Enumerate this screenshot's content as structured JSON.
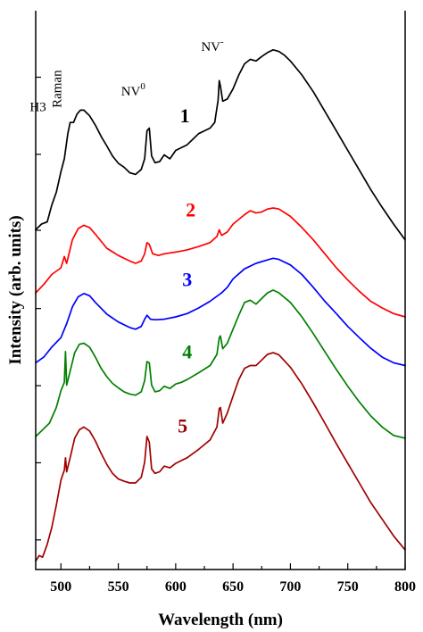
{
  "chart_data": {
    "type": "line",
    "xlabel": "Wavelength (nm)",
    "ylabel": "Intensity (arb. units)",
    "xlim": [
      478,
      800
    ],
    "ylim": [
      0,
      1
    ],
    "x_ticks": [
      500,
      550,
      600,
      650,
      700,
      750,
      800
    ],
    "y_tick_labels_shown": false,
    "y_tick_values": [
      0.053,
      0.191,
      0.329,
      0.467,
      0.607,
      0.743,
      0.881
    ],
    "grid": false,
    "legend": "none",
    "series": [
      {
        "label": "1",
        "color": "#000000",
        "label_pos": {
          "x": 608,
          "y": 0.8
        },
        "points": [
          [
            478,
            0.608
          ],
          [
            483,
            0.618
          ],
          [
            488,
            0.622
          ],
          [
            492,
            0.652
          ],
          [
            496,
            0.675
          ],
          [
            500,
            0.712
          ],
          [
            503,
            0.735
          ],
          [
            506,
            0.78
          ],
          [
            508,
            0.8
          ],
          [
            511,
            0.8
          ],
          [
            514,
            0.815
          ],
          [
            517,
            0.822
          ],
          [
            520,
            0.822
          ],
          [
            525,
            0.812
          ],
          [
            530,
            0.795
          ],
          [
            535,
            0.775
          ],
          [
            540,
            0.758
          ],
          [
            545,
            0.74
          ],
          [
            550,
            0.727
          ],
          [
            555,
            0.72
          ],
          [
            560,
            0.71
          ],
          [
            565,
            0.707
          ],
          [
            570,
            0.716
          ],
          [
            573,
            0.735
          ],
          [
            575,
            0.785
          ],
          [
            577,
            0.79
          ],
          [
            579,
            0.74
          ],
          [
            582,
            0.728
          ],
          [
            586,
            0.73
          ],
          [
            590,
            0.742
          ],
          [
            595,
            0.735
          ],
          [
            600,
            0.75
          ],
          [
            605,
            0.755
          ],
          [
            610,
            0.76
          ],
          [
            615,
            0.77
          ],
          [
            620,
            0.78
          ],
          [
            625,
            0.785
          ],
          [
            630,
            0.79
          ],
          [
            634,
            0.8
          ],
          [
            637,
            0.84
          ],
          [
            638,
            0.875
          ],
          [
            639,
            0.865
          ],
          [
            641,
            0.838
          ],
          [
            645,
            0.842
          ],
          [
            650,
            0.86
          ],
          [
            655,
            0.885
          ],
          [
            660,
            0.905
          ],
          [
            665,
            0.913
          ],
          [
            670,
            0.91
          ],
          [
            675,
            0.918
          ],
          [
            680,
            0.925
          ],
          [
            685,
            0.93
          ],
          [
            690,
            0.927
          ],
          [
            695,
            0.92
          ],
          [
            700,
            0.91
          ],
          [
            710,
            0.885
          ],
          [
            720,
            0.855
          ],
          [
            730,
            0.82
          ],
          [
            740,
            0.785
          ],
          [
            750,
            0.75
          ],
          [
            760,
            0.715
          ],
          [
            770,
            0.68
          ],
          [
            780,
            0.648
          ],
          [
            790,
            0.618
          ],
          [
            800,
            0.59
          ]
        ]
      },
      {
        "label": "2",
        "color": "#ff0000",
        "label_pos": {
          "x": 613,
          "y": 0.632
        },
        "points": [
          [
            478,
            0.495
          ],
          [
            485,
            0.51
          ],
          [
            492,
            0.528
          ],
          [
            500,
            0.54
          ],
          [
            503,
            0.56
          ],
          [
            505,
            0.548
          ],
          [
            510,
            0.59
          ],
          [
            515,
            0.61
          ],
          [
            520,
            0.616
          ],
          [
            525,
            0.612
          ],
          [
            530,
            0.6
          ],
          [
            540,
            0.575
          ],
          [
            550,
            0.562
          ],
          [
            560,
            0.552
          ],
          [
            565,
            0.548
          ],
          [
            570,
            0.552
          ],
          [
            573,
            0.565
          ],
          [
            575,
            0.585
          ],
          [
            577,
            0.582
          ],
          [
            580,
            0.565
          ],
          [
            585,
            0.562
          ],
          [
            590,
            0.565
          ],
          [
            600,
            0.568
          ],
          [
            610,
            0.572
          ],
          [
            620,
            0.578
          ],
          [
            630,
            0.585
          ],
          [
            636,
            0.596
          ],
          [
            638,
            0.608
          ],
          [
            640,
            0.598
          ],
          [
            645,
            0.604
          ],
          [
            650,
            0.618
          ],
          [
            660,
            0.635
          ],
          [
            665,
            0.642
          ],
          [
            670,
            0.638
          ],
          [
            675,
            0.64
          ],
          [
            680,
            0.645
          ],
          [
            685,
            0.647
          ],
          [
            690,
            0.645
          ],
          [
            700,
            0.632
          ],
          [
            710,
            0.612
          ],
          [
            720,
            0.59
          ],
          [
            730,
            0.565
          ],
          [
            740,
            0.54
          ],
          [
            750,
            0.518
          ],
          [
            760,
            0.498
          ],
          [
            770,
            0.48
          ],
          [
            780,
            0.468
          ],
          [
            790,
            0.458
          ],
          [
            800,
            0.452
          ]
        ]
      },
      {
        "label": "3",
        "color": "#0000ff",
        "label_pos": {
          "x": 610,
          "y": 0.507
        },
        "points": [
          [
            478,
            0.37
          ],
          [
            485,
            0.38
          ],
          [
            492,
            0.398
          ],
          [
            500,
            0.415
          ],
          [
            505,
            0.44
          ],
          [
            510,
            0.47
          ],
          [
            515,
            0.488
          ],
          [
            520,
            0.494
          ],
          [
            525,
            0.49
          ],
          [
            530,
            0.478
          ],
          [
            540,
            0.457
          ],
          [
            550,
            0.443
          ],
          [
            560,
            0.433
          ],
          [
            565,
            0.43
          ],
          [
            570,
            0.435
          ],
          [
            573,
            0.448
          ],
          [
            575,
            0.455
          ],
          [
            578,
            0.448
          ],
          [
            582,
            0.447
          ],
          [
            590,
            0.448
          ],
          [
            600,
            0.452
          ],
          [
            610,
            0.458
          ],
          [
            620,
            0.468
          ],
          [
            630,
            0.48
          ],
          [
            640,
            0.495
          ],
          [
            645,
            0.505
          ],
          [
            650,
            0.52
          ],
          [
            660,
            0.538
          ],
          [
            670,
            0.548
          ],
          [
            680,
            0.554
          ],
          [
            685,
            0.557
          ],
          [
            690,
            0.555
          ],
          [
            700,
            0.545
          ],
          [
            710,
            0.528
          ],
          [
            720,
            0.505
          ],
          [
            730,
            0.48
          ],
          [
            740,
            0.458
          ],
          [
            750,
            0.435
          ],
          [
            760,
            0.415
          ],
          [
            770,
            0.396
          ],
          [
            780,
            0.38
          ],
          [
            790,
            0.37
          ],
          [
            800,
            0.365
          ]
        ]
      },
      {
        "label": "4",
        "color": "#008000",
        "label_pos": {
          "x": 610,
          "y": 0.378
        },
        "points": [
          [
            478,
            0.238
          ],
          [
            483,
            0.248
          ],
          [
            490,
            0.262
          ],
          [
            496,
            0.29
          ],
          [
            500,
            0.32
          ],
          [
            503,
            0.335
          ],
          [
            504,
            0.39
          ],
          [
            505,
            0.33
          ],
          [
            508,
            0.355
          ],
          [
            512,
            0.388
          ],
          [
            516,
            0.403
          ],
          [
            520,
            0.405
          ],
          [
            525,
            0.398
          ],
          [
            530,
            0.38
          ],
          [
            535,
            0.36
          ],
          [
            540,
            0.345
          ],
          [
            545,
            0.333
          ],
          [
            550,
            0.325
          ],
          [
            555,
            0.318
          ],
          [
            560,
            0.314
          ],
          [
            565,
            0.312
          ],
          [
            570,
            0.318
          ],
          [
            573,
            0.338
          ],
          [
            575,
            0.372
          ],
          [
            577,
            0.37
          ],
          [
            579,
            0.33
          ],
          [
            582,
            0.318
          ],
          [
            586,
            0.32
          ],
          [
            590,
            0.328
          ],
          [
            595,
            0.324
          ],
          [
            600,
            0.332
          ],
          [
            605,
            0.335
          ],
          [
            610,
            0.34
          ],
          [
            620,
            0.352
          ],
          [
            630,
            0.365
          ],
          [
            636,
            0.385
          ],
          [
            638,
            0.415
          ],
          [
            639,
            0.418
          ],
          [
            641,
            0.395
          ],
          [
            645,
            0.405
          ],
          [
            650,
            0.43
          ],
          [
            655,
            0.455
          ],
          [
            660,
            0.478
          ],
          [
            665,
            0.482
          ],
          [
            670,
            0.475
          ],
          [
            675,
            0.485
          ],
          [
            680,
            0.495
          ],
          [
            685,
            0.5
          ],
          [
            690,
            0.495
          ],
          [
            700,
            0.478
          ],
          [
            710,
            0.452
          ],
          [
            720,
            0.422
          ],
          [
            730,
            0.39
          ],
          [
            740,
            0.358
          ],
          [
            750,
            0.328
          ],
          [
            760,
            0.3
          ],
          [
            770,
            0.275
          ],
          [
            780,
            0.255
          ],
          [
            790,
            0.24
          ],
          [
            800,
            0.235
          ]
        ]
      },
      {
        "label": "5",
        "color": "#a00000",
        "label_pos": {
          "x": 606,
          "y": 0.245
        },
        "points": [
          [
            478,
            0.015
          ],
          [
            481,
            0.025
          ],
          [
            484,
            0.022
          ],
          [
            488,
            0.045
          ],
          [
            492,
            0.075
          ],
          [
            496,
            0.115
          ],
          [
            500,
            0.16
          ],
          [
            503,
            0.178
          ],
          [
            504,
            0.2
          ],
          [
            505,
            0.175
          ],
          [
            508,
            0.2
          ],
          [
            512,
            0.235
          ],
          [
            516,
            0.25
          ],
          [
            520,
            0.255
          ],
          [
            525,
            0.248
          ],
          [
            530,
            0.23
          ],
          [
            535,
            0.208
          ],
          [
            540,
            0.188
          ],
          [
            545,
            0.172
          ],
          [
            550,
            0.162
          ],
          [
            555,
            0.158
          ],
          [
            560,
            0.155
          ],
          [
            565,
            0.155
          ],
          [
            570,
            0.165
          ],
          [
            573,
            0.192
          ],
          [
            575,
            0.238
          ],
          [
            577,
            0.228
          ],
          [
            579,
            0.18
          ],
          [
            582,
            0.172
          ],
          [
            586,
            0.175
          ],
          [
            590,
            0.185
          ],
          [
            595,
            0.182
          ],
          [
            600,
            0.19
          ],
          [
            605,
            0.195
          ],
          [
            610,
            0.2
          ],
          [
            620,
            0.215
          ],
          [
            630,
            0.232
          ],
          [
            636,
            0.255
          ],
          [
            638,
            0.288
          ],
          [
            639,
            0.29
          ],
          [
            641,
            0.262
          ],
          [
            645,
            0.28
          ],
          [
            650,
            0.31
          ],
          [
            655,
            0.34
          ],
          [
            660,
            0.36
          ],
          [
            665,
            0.365
          ],
          [
            670,
            0.365
          ],
          [
            675,
            0.375
          ],
          [
            680,
            0.385
          ],
          [
            685,
            0.388
          ],
          [
            690,
            0.384
          ],
          [
            700,
            0.362
          ],
          [
            710,
            0.332
          ],
          [
            720,
            0.298
          ],
          [
            730,
            0.262
          ],
          [
            740,
            0.225
          ],
          [
            750,
            0.19
          ],
          [
            760,
            0.155
          ],
          [
            770,
            0.12
          ],
          [
            780,
            0.09
          ],
          [
            790,
            0.06
          ],
          [
            800,
            0.035
          ]
        ]
      }
    ],
    "annotations": [
      {
        "text": "H3",
        "x": 480,
        "y": 0.82
      },
      {
        "text": "Raman",
        "x": 500,
        "y": 0.86,
        "rotate": -90
      },
      {
        "text": "NV",
        "sup": "0",
        "x": 563,
        "y": 0.848
      },
      {
        "text": "NV",
        "sup": "-",
        "x": 632,
        "y": 0.928
      }
    ]
  }
}
